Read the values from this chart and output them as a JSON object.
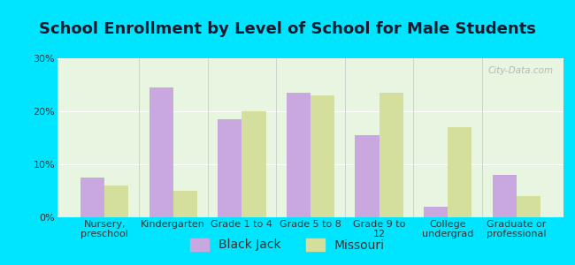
{
  "title": "School Enrollment by Level of School for Male Students",
  "categories": [
    "Nursery,\npreschool",
    "Kindergarten",
    "Grade 1 to 4",
    "Grade 5 to 8",
    "Grade 9 to\n12",
    "College\nundergrad",
    "Graduate or\nprofessional"
  ],
  "black_jack": [
    7.5,
    24.5,
    18.5,
    23.5,
    15.5,
    2.0,
    8.0
  ],
  "missouri": [
    6.0,
    5.0,
    20.0,
    23.0,
    23.5,
    17.0,
    4.0
  ],
  "black_jack_color": "#c9a8e0",
  "missouri_color": "#d4df9e",
  "background_color": "#e8f5e0",
  "outer_background": "#00e5ff",
  "ylim": [
    0,
    30
  ],
  "yticks": [
    0,
    10,
    20,
    30
  ],
  "ytick_labels": [
    "0%",
    "10%",
    "20%",
    "30%"
  ],
  "legend_label_bj": "Black Jack",
  "legend_label_mo": "Missouri",
  "bar_width": 0.35,
  "title_fontsize": 13,
  "tick_fontsize": 8,
  "legend_fontsize": 10
}
